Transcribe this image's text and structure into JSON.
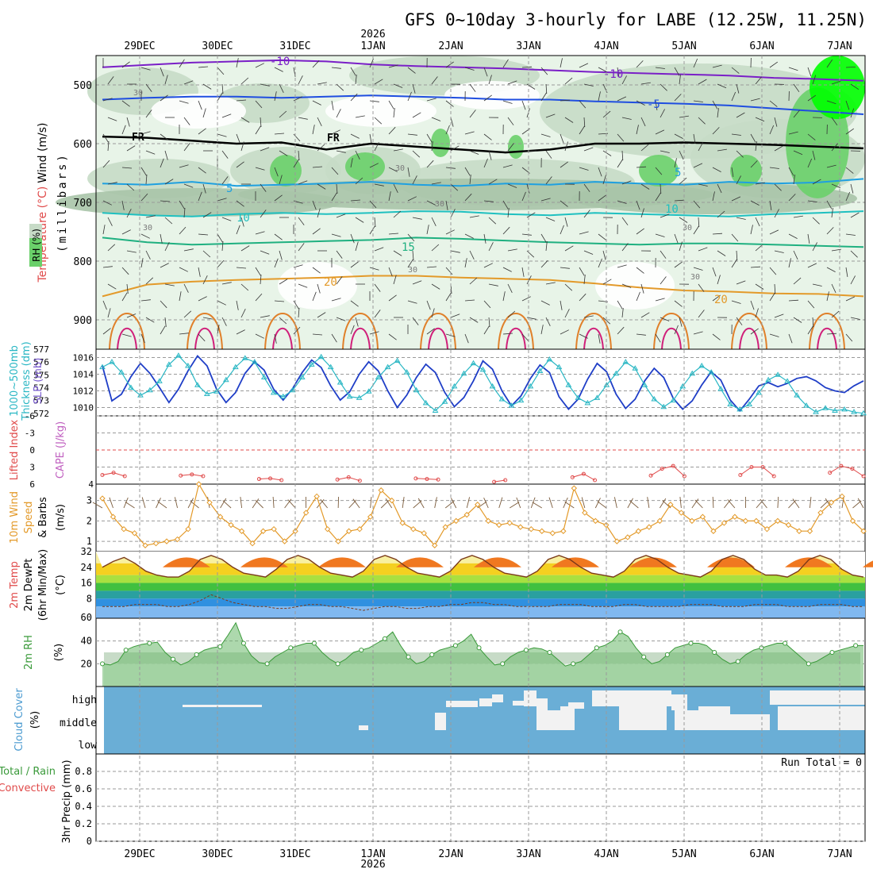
{
  "title": "GFS 0~10day 3-hourly for LABE (12.25W, 11.25N)",
  "year_label": "2026",
  "date_labels": [
    "29DEC",
    "30DEC",
    "31DEC",
    "1JAN",
    "2JAN",
    "3JAN",
    "4JAN",
    "5JAN",
    "6JAN",
    "7JAN"
  ],
  "colors": {
    "rh_light": "#e8f4e8",
    "rh_mid": "#c7dbc7",
    "rh_dark": "#a9c4a9",
    "rh_green": "#6ad06a",
    "rh_bright": "#00ff00",
    "cloud_blue": "#6aaed6",
    "cloud_white": "#f2f2f2",
    "slp": "#1f3ec7",
    "thickness": "#2ab7c4",
    "li": "#e04a4a",
    "wind": "#e39a2a",
    "rh2m": "#3a9a3a"
  },
  "panels": {
    "upper": {
      "axis_label_rh": "RH (%)",
      "axis_label_temp": "Temperature (°C)",
      "axis_label_wind": "Wind (m/s)",
      "axis_label_p": "(millibars)",
      "freezing_labels": [
        "FR",
        "FR"
      ],
      "isotherm_labels": [
        "-10",
        "-10",
        "-5",
        "5",
        "5",
        "10",
        "10",
        "15",
        "20",
        "20"
      ],
      "rh_labels": [
        "30",
        "30",
        "30",
        "30",
        "30",
        "30",
        "30"
      ]
    },
    "slp": {
      "axis_label_thick": "1000~500mb Thickness (dm)",
      "axis_label_slp": "SLP (mb)"
    },
    "li": {
      "axis_label_li": "Lifted Index",
      "axis_label_cape": "CAPE (J/kg)"
    },
    "wind": {
      "axis_label_1": "10m Wind",
      "axis_label_2": "Speed",
      "axis_label_3": "& Barbs",
      "axis_label_units": "(m/s)"
    },
    "temp": {
      "axis_label_1": "2m Temp",
      "axis_label_2": "2m DewPt",
      "axis_label_3": "(6hr Min/Max)",
      "axis_label_units": "(°C)"
    },
    "rh": {
      "axis_label_1": "2m RH",
      "axis_label_units": "(%)"
    },
    "cloud": {
      "axis_label_1": "Cloud Cover",
      "axis_label_units": "(%)",
      "levels": [
        "high",
        "middle",
        "low"
      ]
    },
    "precip": {
      "axis_label_1": "Total / Rain",
      "axis_label_2": "Convective",
      "axis_label_3": "3hr Precip (mm)",
      "run_total": "Run Total = 0"
    }
  },
  "chart_data": [
    {
      "type": "line",
      "title": "Pressure-level RH / Temperature / Wind",
      "ylabel": "millibars",
      "ylim": [
        950,
        450
      ],
      "yticks": [
        500,
        600,
        700,
        800,
        900
      ],
      "isotherms": [
        {
          "name": "-10",
          "values": [
            470,
            466,
            462,
            460,
            458,
            460,
            465,
            468,
            470,
            472,
            475,
            478,
            480,
            482,
            484,
            488,
            490,
            493
          ]
        },
        {
          "name": "-5",
          "values": [
            525,
            522,
            520,
            520,
            522,
            520,
            518,
            520,
            522,
            525,
            525,
            528,
            530,
            532,
            535,
            540,
            545,
            550
          ]
        },
        {
          "name": "FR",
          "values": [
            588,
            590,
            595,
            600,
            598,
            610,
            600,
            605,
            610,
            615,
            610,
            600,
            600,
            598,
            600,
            602,
            605,
            608
          ]
        },
        {
          "name": "5",
          "values": [
            668,
            670,
            665,
            672,
            670,
            668,
            665,
            670,
            672,
            668,
            670,
            665,
            668,
            670,
            665,
            668,
            666,
            660
          ]
        },
        {
          "name": "10",
          "values": [
            718,
            722,
            724,
            720,
            718,
            720,
            718,
            715,
            716,
            720,
            722,
            718,
            720,
            722,
            724,
            720,
            718,
            715
          ]
        },
        {
          "name": "15",
          "values": [
            760,
            768,
            772,
            770,
            768,
            766,
            764,
            760,
            762,
            765,
            768,
            770,
            772,
            770,
            770,
            772,
            774,
            776
          ]
        },
        {
          "name": "20",
          "values": [
            860,
            840,
            835,
            832,
            830,
            828,
            825,
            825,
            828,
            830,
            832,
            838,
            845,
            850,
            852,
            855,
            856,
            860
          ]
        }
      ]
    },
    {
      "type": "line",
      "title": "SLP and 1000~500mb Thickness",
      "x_hours_step": 3,
      "slp_ylim": [
        1009,
        1017
      ],
      "slp_yticks": [
        1010,
        1012,
        1014,
        1016
      ],
      "thick_yticks": [
        572,
        573,
        574,
        575,
        576,
        577
      ],
      "series": [
        {
          "name": "SLP",
          "values": [
            1015.0,
            1010.8,
            1011.6,
            1013.7,
            1015.3,
            1014.1,
            1012.4,
            1010.6,
            1012.2,
            1014.4,
            1016.2,
            1015.0,
            1012.2,
            1010.6,
            1011.8,
            1014.1,
            1015.5,
            1014.5,
            1012.2,
            1010.9,
            1012.3,
            1014.2,
            1015.7,
            1014.8,
            1012.6,
            1010.9,
            1011.9,
            1014.0,
            1015.5,
            1014.4,
            1012.0,
            1010.0,
            1011.5,
            1013.6,
            1015.2,
            1014.2,
            1011.8,
            1010.1,
            1011.2,
            1013.2,
            1015.6,
            1014.6,
            1012.0,
            1010.2,
            1011.4,
            1013.5,
            1015.1,
            1014.2,
            1011.3,
            1009.8,
            1011.0,
            1013.4,
            1015.3,
            1014.3,
            1011.6,
            1009.9,
            1011.0,
            1013.2,
            1014.7,
            1013.6,
            1011.1,
            1009.8,
            1010.8,
            1012.7,
            1014.3,
            1013.3,
            1010.9,
            1009.6,
            1011.0,
            1012.6,
            1013.0,
            1012.5,
            1012.9,
            1013.5,
            1013.7,
            1013.2,
            1012.4,
            1012.0,
            1011.8,
            1012.6,
            1013.2
          ]
        },
        {
          "name": "Thickness",
          "values": [
            575.6,
            576.0,
            575.2,
            574.0,
            573.4,
            573.8,
            574.5,
            575.8,
            576.5,
            575.7,
            574.2,
            573.5,
            573.7,
            574.6,
            575.6,
            576.3,
            576.0,
            574.8,
            573.6,
            573.3,
            573.8,
            574.8,
            575.8,
            576.4,
            575.6,
            574.4,
            573.3,
            573.2,
            573.7,
            574.8,
            575.6,
            576.1,
            575.2,
            573.8,
            572.8,
            572.2,
            572.9,
            574.1,
            575.1,
            575.9,
            575.4,
            574.1,
            573.1,
            572.6,
            573.0,
            574.1,
            575.3,
            576.2,
            575.6,
            574.2,
            573.2,
            572.8,
            573.2,
            574.2,
            575.1,
            576.0,
            575.5,
            574.2,
            573.1,
            572.5,
            573.0,
            574.1,
            575.1,
            575.7,
            575.2,
            573.9,
            572.7,
            572.3,
            572.7,
            573.6,
            574.6,
            575.0,
            574.5,
            573.4,
            572.6,
            572.1,
            572.4,
            572.2,
            572.3,
            572.1,
            572.0
          ]
        }
      ]
    },
    {
      "type": "line",
      "title": "Lifted Index / CAPE",
      "li_ylim": [
        6,
        -6
      ],
      "li_yticks": [
        6,
        3,
        0,
        -3,
        -6
      ],
      "cape_yticks": [
        4
      ],
      "series": [
        {
          "name": "Lifted Index",
          "values": [
            4.4,
            4.0,
            4.6,
            null,
            null,
            null,
            null,
            4.5,
            4.3,
            4.6,
            null,
            null,
            null,
            null,
            5.1,
            5.0,
            5.3,
            null,
            null,
            null,
            null,
            5.2,
            4.8,
            5.4,
            null,
            null,
            null,
            null,
            5.0,
            5.1,
            5.2,
            null,
            null,
            null,
            null,
            5.6,
            5.3,
            null,
            null,
            null,
            null,
            null,
            4.8,
            4.2,
            5.3,
            null,
            null,
            null,
            null,
            4.5,
            3.3,
            2.8,
            4.6,
            null,
            null,
            null,
            null,
            4.4,
            3.0,
            3.0,
            4.6,
            null,
            null,
            null,
            null,
            4.0,
            2.8,
            3.3,
            4.6
          ]
        }
      ]
    },
    {
      "type": "line",
      "title": "10m Wind Speed & Barbs",
      "ylim": [
        0.5,
        3.8
      ],
      "yticks": [
        1,
        2,
        3
      ],
      "series": [
        {
          "name": "Wind Speed",
          "values": [
            3.1,
            2.2,
            1.6,
            1.4,
            0.8,
            0.9,
            1.0,
            1.1,
            1.6,
            3.8,
            2.9,
            2.2,
            1.8,
            1.5,
            0.9,
            1.5,
            1.6,
            1.0,
            1.5,
            2.4,
            3.2,
            1.6,
            1.0,
            1.5,
            1.6,
            2.2,
            3.5,
            3.0,
            1.9,
            1.6,
            1.4,
            0.8,
            1.7,
            2.0,
            2.3,
            2.8,
            2.0,
            1.8,
            1.9,
            1.7,
            1.6,
            1.5,
            1.4,
            1.5,
            3.6,
            2.4,
            2.0,
            1.8,
            1.0,
            1.2,
            1.5,
            1.7,
            2.0,
            2.8,
            2.4,
            2.0,
            2.2,
            1.5,
            1.9,
            2.2,
            2.0,
            2.0,
            1.6,
            2.0,
            1.8,
            1.5,
            1.5,
            2.4,
            2.9,
            3.2,
            2.0,
            1.5
          ]
        }
      ]
    },
    {
      "type": "area",
      "title": "2m Temp / DewPt",
      "ylim": [
        -2,
        32
      ],
      "yticks": [
        32,
        24,
        16,
        8,
        60
      ],
      "series": [
        {
          "name": "2m Temp",
          "values": [
            24,
            27,
            29,
            26,
            22,
            20,
            19,
            19,
            22,
            28,
            30,
            28,
            24,
            21,
            20,
            19,
            23,
            28,
            30,
            28,
            24,
            21,
            20,
            19,
            22,
            28,
            30,
            28,
            24,
            21,
            20,
            19,
            22,
            28,
            30,
            28,
            24,
            21,
            20,
            19,
            22,
            28,
            30,
            28,
            24,
            21,
            20,
            19,
            22,
            28,
            30,
            28,
            24,
            21,
            20,
            19,
            22,
            28,
            30,
            28,
            23,
            20,
            20,
            19,
            22,
            28,
            30,
            28,
            23,
            20,
            19
          ]
        },
        {
          "name": "2m DewPt",
          "values": [
            4,
            4,
            4,
            5,
            5,
            5,
            4,
            4,
            5,
            7,
            10,
            8,
            6,
            5,
            4,
            4,
            3,
            3,
            4,
            5,
            5,
            4,
            4,
            3,
            2,
            3,
            4,
            4,
            3,
            3,
            4,
            4,
            5,
            5,
            6,
            6,
            5,
            5,
            4,
            4,
            4,
            4,
            5,
            5,
            5,
            4,
            4,
            4,
            5,
            5,
            4,
            4,
            4,
            4,
            5,
            5,
            5,
            4,
            4,
            4,
            5,
            5,
            5,
            4,
            4,
            4,
            5,
            5,
            5,
            4,
            4
          ]
        }
      ]
    },
    {
      "type": "area",
      "title": "2m RH",
      "ylim": [
        0,
        60
      ],
      "yticks": [
        20,
        40
      ],
      "series": [
        {
          "name": "2m RH",
          "values": [
            20,
            19,
            22,
            32,
            35,
            37,
            38,
            39,
            30,
            24,
            19,
            22,
            28,
            32,
            34,
            35,
            45,
            56,
            38,
            27,
            21,
            20,
            26,
            30,
            34,
            36,
            38,
            38,
            30,
            24,
            20,
            24,
            30,
            32,
            34,
            38,
            42,
            48,
            36,
            26,
            20,
            22,
            28,
            32,
            34,
            36,
            40,
            46,
            34,
            26,
            19,
            20,
            26,
            30,
            32,
            34,
            33,
            30,
            24,
            18,
            20,
            22,
            28,
            34,
            36,
            40,
            48,
            44,
            34,
            26,
            20,
            22,
            28,
            34,
            36,
            38,
            38,
            36,
            30,
            24,
            20,
            22,
            28,
            32,
            34,
            36,
            38,
            38,
            32,
            26,
            20,
            22,
            26,
            30,
            32,
            34,
            36,
            36
          ]
        }
      ]
    },
    {
      "type": "bar",
      "title": "Cloud Cover",
      "categories": [
        "high",
        "middle",
        "low"
      ],
      "note": "high-level cover increases from near 0% early to 60~90% by 6JAN~7JAN; middle-level cover increases from ~3JAN"
    },
    {
      "type": "bar",
      "title": "3hr Precip (mm)",
      "ylim": [
        0,
        1
      ],
      "yticks": [
        0,
        0.2,
        0.4,
        0.6,
        0.8
      ],
      "values": [
        0
      ]
    }
  ]
}
